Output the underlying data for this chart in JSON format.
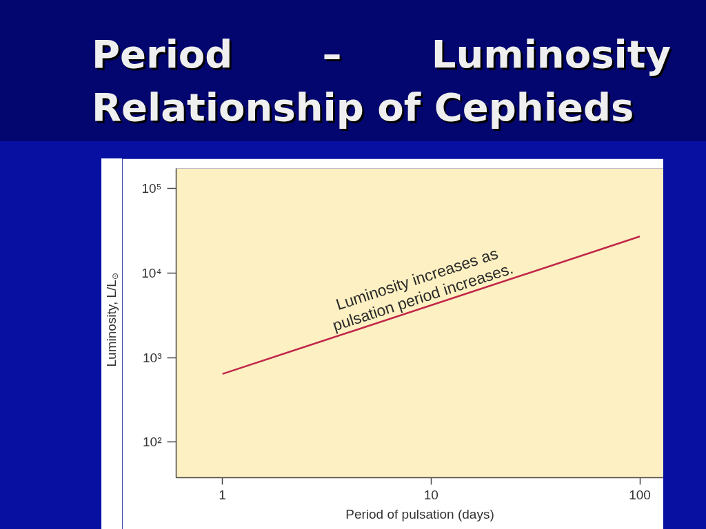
{
  "chart_data": {
    "type": "line",
    "title": "Period – Luminosity Relationship of Cephieds",
    "xlabel": "Period of pulsation (days)",
    "ylabel": "Luminosity, L/L$_{⊙}$",
    "x": [
      1,
      100
    ],
    "series": [
      {
        "color": "#c0284a",
        "values": [
          640,
          27000
        ]
      }
    ],
    "log": "xy",
    "xlim": [
      0.6,
      130
    ],
    "ylim": [
      38,
      172000
    ],
    "xticks": [
      1,
      10,
      100
    ],
    "yticks": [
      {
        "value": 100,
        "label": "10²"
      },
      {
        "value": 1000,
        "label": "10³"
      },
      {
        "value": 10000,
        "label": "10⁴"
      },
      {
        "value": 100000,
        "label": "10⁵"
      }
    ],
    "annotations": [
      "Luminosity increases as\npulsation period increases."
    ]
  }
}
